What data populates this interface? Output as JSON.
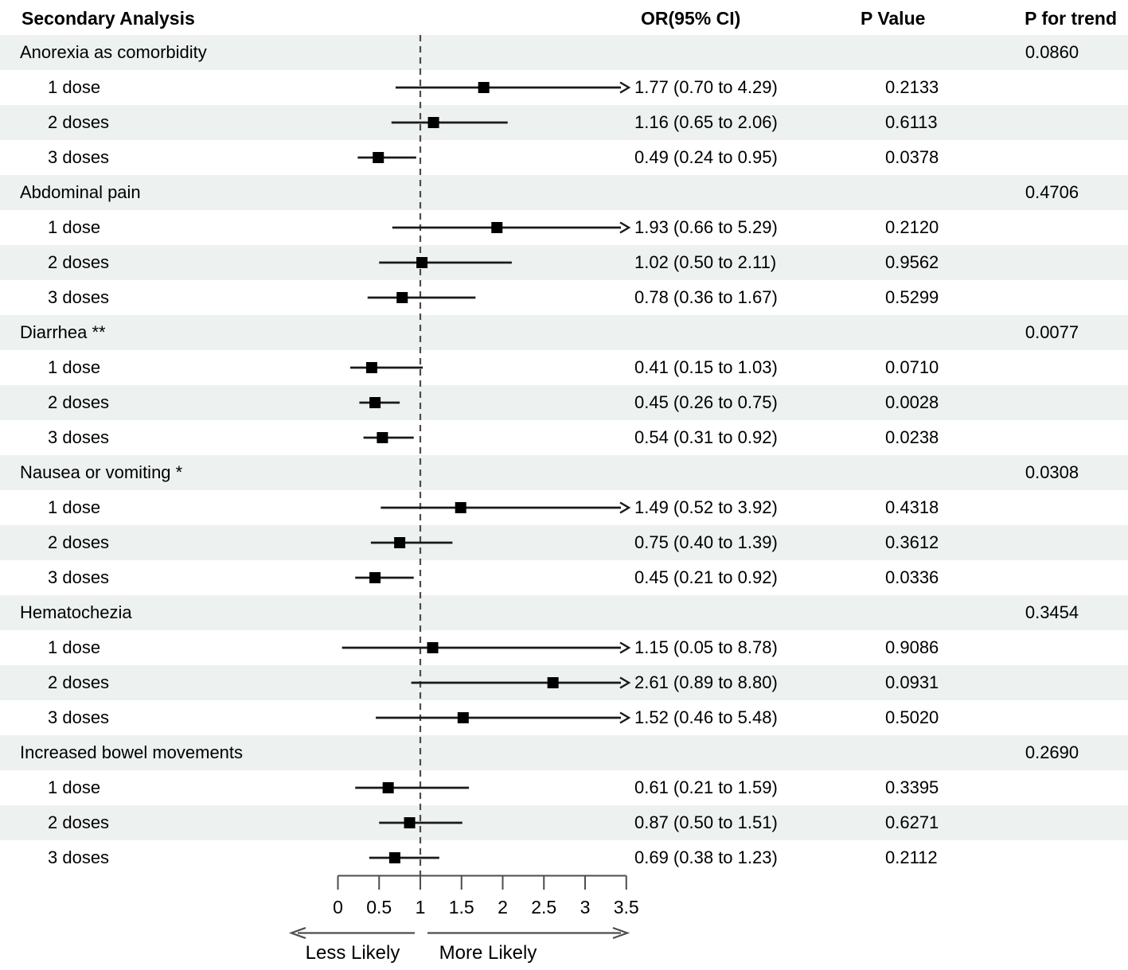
{
  "header": {
    "analysis": "Secondary Analysis",
    "or_ci": "OR(95% CI)",
    "p_value": "P Value",
    "p_trend": "P for trend"
  },
  "colors": {
    "row_shade": "#edf1f0",
    "text": "#000000",
    "ci_line": "#1a1a1a",
    "marker": "#000000",
    "reference_dash": "#4d4d4d",
    "axis": "#4d4d4d"
  },
  "chart_data": {
    "type": "forest",
    "title": "Secondary Analysis",
    "xlim": [
      0,
      3.5
    ],
    "reference_line": 1,
    "x_tick_labels": [
      "0",
      "0.5",
      "1",
      "1.5",
      "2",
      "2.5",
      "3",
      "3.5"
    ],
    "x_tick_values": [
      0,
      0.5,
      1,
      1.5,
      2,
      2.5,
      3,
      3.5
    ],
    "direction_labels": {
      "less": "Less Likely",
      "more": "More Likely"
    },
    "groups": [
      {
        "label": "Anorexia as comorbidity",
        "p_trend": "0.0860",
        "rows": [
          {
            "label": "1 dose",
            "or": 1.77,
            "lo": 0.7,
            "hi": 4.29,
            "or_text": "1.77 (0.70 to 4.29)",
            "p": "0.2133"
          },
          {
            "label": "2 doses",
            "or": 1.16,
            "lo": 0.65,
            "hi": 2.06,
            "or_text": "1.16 (0.65 to 2.06)",
            "p": "0.6113"
          },
          {
            "label": "3 doses",
            "or": 0.49,
            "lo": 0.24,
            "hi": 0.95,
            "or_text": "0.49 (0.24 to 0.95)",
            "p": "0.0378"
          }
        ]
      },
      {
        "label": "Abdominal pain",
        "p_trend": "0.4706",
        "rows": [
          {
            "label": "1 dose",
            "or": 1.93,
            "lo": 0.66,
            "hi": 5.29,
            "or_text": "1.93 (0.66 to 5.29)",
            "p": "0.2120"
          },
          {
            "label": "2 doses",
            "or": 1.02,
            "lo": 0.5,
            "hi": 2.11,
            "or_text": "1.02 (0.50 to 2.11)",
            "p": "0.9562"
          },
          {
            "label": "3 doses",
            "or": 0.78,
            "lo": 0.36,
            "hi": 1.67,
            "or_text": "0.78 (0.36 to 1.67)",
            "p": "0.5299"
          }
        ]
      },
      {
        "label": "Diarrhea **",
        "p_trend": "0.0077",
        "rows": [
          {
            "label": "1 dose",
            "or": 0.41,
            "lo": 0.15,
            "hi": 1.03,
            "or_text": "0.41 (0.15 to 1.03)",
            "p": "0.0710"
          },
          {
            "label": "2 doses",
            "or": 0.45,
            "lo": 0.26,
            "hi": 0.75,
            "or_text": "0.45 (0.26 to 0.75)",
            "p": "0.0028"
          },
          {
            "label": "3 doses",
            "or": 0.54,
            "lo": 0.31,
            "hi": 0.92,
            "or_text": "0.54 (0.31 to 0.92)",
            "p": "0.0238"
          }
        ]
      },
      {
        "label": "Nausea or vomiting *",
        "p_trend": "0.0308",
        "rows": [
          {
            "label": "1 dose",
            "or": 1.49,
            "lo": 0.52,
            "hi": 3.92,
            "or_text": "1.49 (0.52 to 3.92)",
            "p": "0.4318"
          },
          {
            "label": "2 doses",
            "or": 0.75,
            "lo": 0.4,
            "hi": 1.39,
            "or_text": "0.75 (0.40 to 1.39)",
            "p": "0.3612"
          },
          {
            "label": "3 doses",
            "or": 0.45,
            "lo": 0.21,
            "hi": 0.92,
            "or_text": "0.45 (0.21 to 0.92)",
            "p": "0.0336"
          }
        ]
      },
      {
        "label": "Hematochezia",
        "p_trend": "0.3454",
        "rows": [
          {
            "label": "1 dose",
            "or": 1.15,
            "lo": 0.05,
            "hi": 8.78,
            "or_text": "1.15 (0.05 to 8.78)",
            "p": "0.9086"
          },
          {
            "label": "2 doses",
            "or": 2.61,
            "lo": 0.89,
            "hi": 8.8,
            "or_text": "2.61 (0.89 to 8.80)",
            "p": "0.0931"
          },
          {
            "label": "3 doses",
            "or": 1.52,
            "lo": 0.46,
            "hi": 5.48,
            "or_text": "1.52 (0.46 to 5.48)",
            "p": "0.5020"
          }
        ]
      },
      {
        "label": "Increased bowel movements",
        "p_trend": "0.2690",
        "rows": [
          {
            "label": "1 dose",
            "or": 0.61,
            "lo": 0.21,
            "hi": 1.59,
            "or_text": "0.61 (0.21 to 1.59)",
            "p": "0.3395"
          },
          {
            "label": "2 doses",
            "or": 0.87,
            "lo": 0.5,
            "hi": 1.51,
            "or_text": "0.87 (0.50 to 1.51)",
            "p": "0.6271"
          },
          {
            "label": "3 doses",
            "or": 0.69,
            "lo": 0.38,
            "hi": 1.23,
            "or_text": "0.69 (0.38 to 1.23)",
            "p": "0.2112"
          }
        ]
      }
    ]
  }
}
